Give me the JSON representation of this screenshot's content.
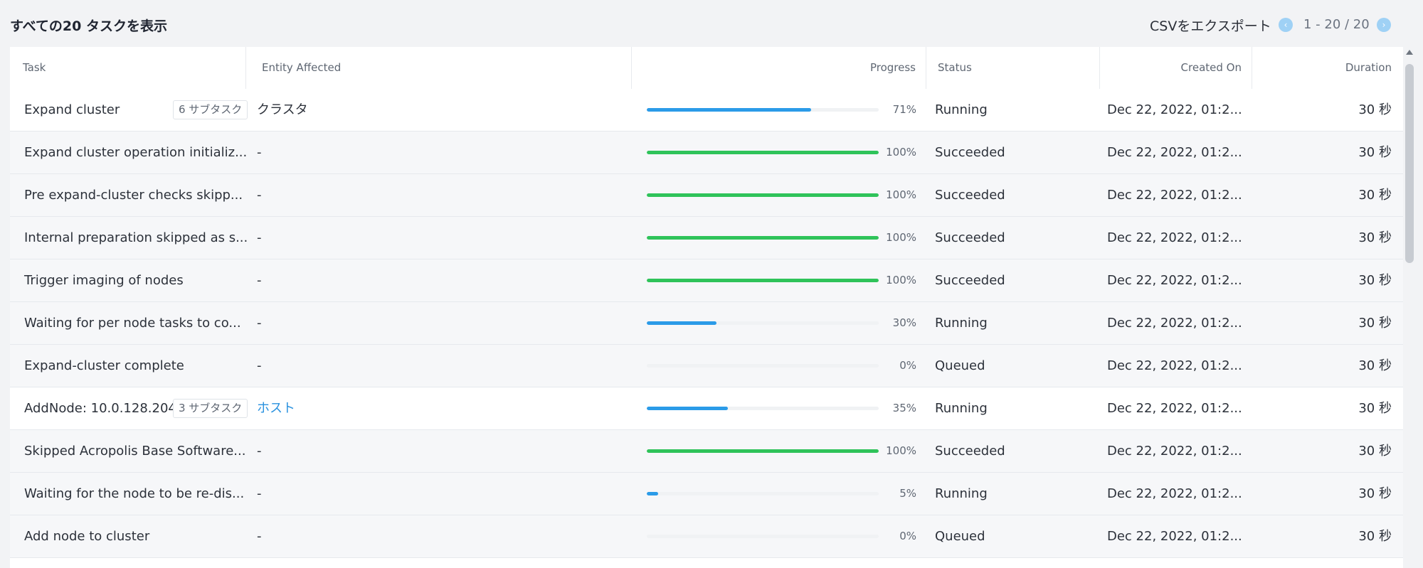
{
  "header": {
    "title": "すべての20 タスクを表示",
    "export_label": "CSVをエクスポート",
    "pager": {
      "range": "1 - 20 / 20",
      "prev_icon": "chevron-left-icon",
      "next_icon": "chevron-right-icon"
    }
  },
  "columns": {
    "task": "Task",
    "entity": "Entity Affected",
    "progress": "Progress",
    "status": "Status",
    "created": "Created On",
    "duration": "Duration"
  },
  "rows": [
    {
      "task": "Expand cluster",
      "badge": "6 サブタスク",
      "entity": "クラスタ",
      "entity_link": false,
      "progress": 71,
      "percent": "71%",
      "status": "Running",
      "created": "Dec 22, 2022, 01:2...",
      "duration": "30 秒",
      "parent": true
    },
    {
      "task": "Expand cluster operation initializ...",
      "badge": "",
      "entity": "-",
      "entity_link": false,
      "progress": 100,
      "percent": "100%",
      "status": "Succeeded",
      "created": "Dec 22, 2022, 01:2...",
      "duration": "30 秒",
      "parent": false
    },
    {
      "task": "Pre expand-cluster checks skipp...",
      "badge": "",
      "entity": "-",
      "entity_link": false,
      "progress": 100,
      "percent": "100%",
      "status": "Succeeded",
      "created": "Dec 22, 2022, 01:2...",
      "duration": "30 秒",
      "parent": false
    },
    {
      "task": "Internal preparation skipped as s...",
      "badge": "",
      "entity": "-",
      "entity_link": false,
      "progress": 100,
      "percent": "100%",
      "status": "Succeeded",
      "created": "Dec 22, 2022, 01:2...",
      "duration": "30 秒",
      "parent": false
    },
    {
      "task": "Trigger imaging of nodes",
      "badge": "",
      "entity": "-",
      "entity_link": false,
      "progress": 100,
      "percent": "100%",
      "status": "Succeeded",
      "created": "Dec 22, 2022, 01:2...",
      "duration": "30 秒",
      "parent": false
    },
    {
      "task": "Waiting for per node tasks to co...",
      "badge": "",
      "entity": "-",
      "entity_link": false,
      "progress": 30,
      "percent": "30%",
      "status": "Running",
      "created": "Dec 22, 2022, 01:2...",
      "duration": "30 秒",
      "parent": false
    },
    {
      "task": "Expand-cluster complete",
      "badge": "",
      "entity": "-",
      "entity_link": false,
      "progress": 0,
      "percent": "0%",
      "status": "Queued",
      "created": "Dec 22, 2022, 01:2...",
      "duration": "30 秒",
      "parent": false
    },
    {
      "task": "AddNode: 10.0.128.204",
      "badge": "3 サブタスク",
      "entity": "ホスト",
      "entity_link": true,
      "progress": 35,
      "percent": "35%",
      "status": "Running",
      "created": "Dec 22, 2022, 01:2...",
      "duration": "30 秒",
      "parent": true
    },
    {
      "task": "Skipped Acropolis Base Software...",
      "badge": "",
      "entity": "-",
      "entity_link": false,
      "progress": 100,
      "percent": "100%",
      "status": "Succeeded",
      "created": "Dec 22, 2022, 01:2...",
      "duration": "30 秒",
      "parent": false
    },
    {
      "task": "Waiting for the node to be re-dis...",
      "badge": "",
      "entity": "-",
      "entity_link": false,
      "progress": 5,
      "percent": "5%",
      "status": "Running",
      "created": "Dec 22, 2022, 01:2...",
      "duration": "30 秒",
      "parent": false
    },
    {
      "task": "Add node to cluster",
      "badge": "",
      "entity": "-",
      "entity_link": false,
      "progress": 0,
      "percent": "0%",
      "status": "Queued",
      "created": "Dec 22, 2022, 01:2...",
      "duration": "30 秒",
      "parent": false
    }
  ]
}
